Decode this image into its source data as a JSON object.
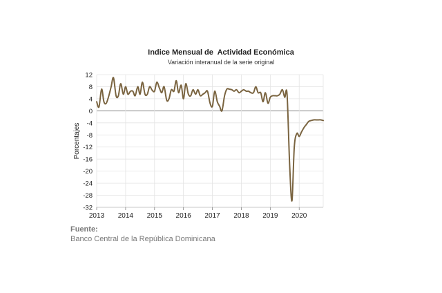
{
  "chart_data": {
    "type": "line",
    "title": "Indice Mensual de  Actividad Económica",
    "subtitle": "Variación interanual de la serie original",
    "xlabel": "",
    "ylabel": "Porcentajes",
    "xlim": [
      2013,
      2020.83
    ],
    "ylim": [
      -32,
      12
    ],
    "yticks": [
      12,
      8,
      4,
      0,
      -4,
      -8,
      -12,
      -16,
      -20,
      -24,
      -28,
      -32
    ],
    "xticks": [
      2013,
      2014,
      2015,
      2016,
      2017,
      2018,
      2019,
      2020
    ],
    "grid": true,
    "line_color": "#7a6440",
    "series": [
      {
        "x": [
          2013.0,
          2013.08,
          2013.17,
          2013.25,
          2013.33,
          2013.42,
          2013.5,
          2013.58,
          2013.67,
          2013.75,
          2013.83,
          2013.92,
          2014.0,
          2014.08,
          2014.17,
          2014.25,
          2014.33,
          2014.42,
          2014.5,
          2014.58,
          2014.67,
          2014.75,
          2014.83,
          2014.92,
          2015.0,
          2015.08,
          2015.17,
          2015.25,
          2015.33,
          2015.42,
          2015.5,
          2015.58,
          2015.67,
          2015.75,
          2015.83,
          2015.92,
          2016.0,
          2016.08,
          2016.17,
          2016.25,
          2016.33,
          2016.42,
          2016.5,
          2016.58,
          2016.67,
          2016.75,
          2016.83,
          2016.92,
          2017.0,
          2017.08,
          2017.17,
          2017.25,
          2017.33,
          2017.42,
          2017.5,
          2017.58,
          2017.67,
          2017.75,
          2017.83,
          2017.92,
          2018.0,
          2018.08,
          2018.17,
          2018.25,
          2018.33,
          2018.42,
          2018.5,
          2018.58,
          2018.67,
          2018.75,
          2018.83,
          2018.92,
          2019.0,
          2019.08,
          2019.17,
          2019.25,
          2019.33,
          2019.42,
          2019.5,
          2019.58,
          2019.67,
          2019.75,
          2019.83,
          2019.92,
          2020.0,
          2020.08,
          2020.17,
          2020.25,
          2020.33,
          2020.42,
          2020.5,
          2020.58,
          2020.67,
          2020.75,
          2020.83
        ],
        "values": [
          3.0,
          1.3,
          7.2,
          3.0,
          2.5,
          5.0,
          8.0,
          11.0,
          5.0,
          5.0,
          9.0,
          5.5,
          8.0,
          5.5,
          6.5,
          6.5,
          5.0,
          8.0,
          5.5,
          9.5,
          5.5,
          5.5,
          8.0,
          6.8,
          6.5,
          9.5,
          7.5,
          6.0,
          8.0,
          3.5,
          4.0,
          7.0,
          6.5,
          10.0,
          6.0,
          8.5,
          4.0,
          9.0,
          5.5,
          5.0,
          7.0,
          5.5,
          7.0,
          5.0,
          5.5,
          6.0,
          6.5,
          2.5,
          1.5,
          6.5,
          3.0,
          1.5,
          0.0,
          5.0,
          7.2,
          7.2,
          7.0,
          6.5,
          7.0,
          6.0,
          6.5,
          7.0,
          6.5,
          6.5,
          6.0,
          6.0,
          8.0,
          6.0,
          6.0,
          3.0,
          6.0,
          2.5,
          4.5,
          5.0,
          5.0,
          5.0,
          5.5,
          7.0,
          4.5,
          5.5,
          -18.0,
          -29.8,
          -12.0,
          -7.5,
          -8.5,
          -7.0,
          -5.5,
          -4.5,
          -3.5,
          -3.2,
          -3.0,
          -3.0,
          -3.0,
          -3.0,
          -3.2
        ],
        "line_color": "#7a6440"
      }
    ]
  },
  "source": {
    "label": "Fuente:",
    "text": "Banco Central de la República Dominicana"
  }
}
